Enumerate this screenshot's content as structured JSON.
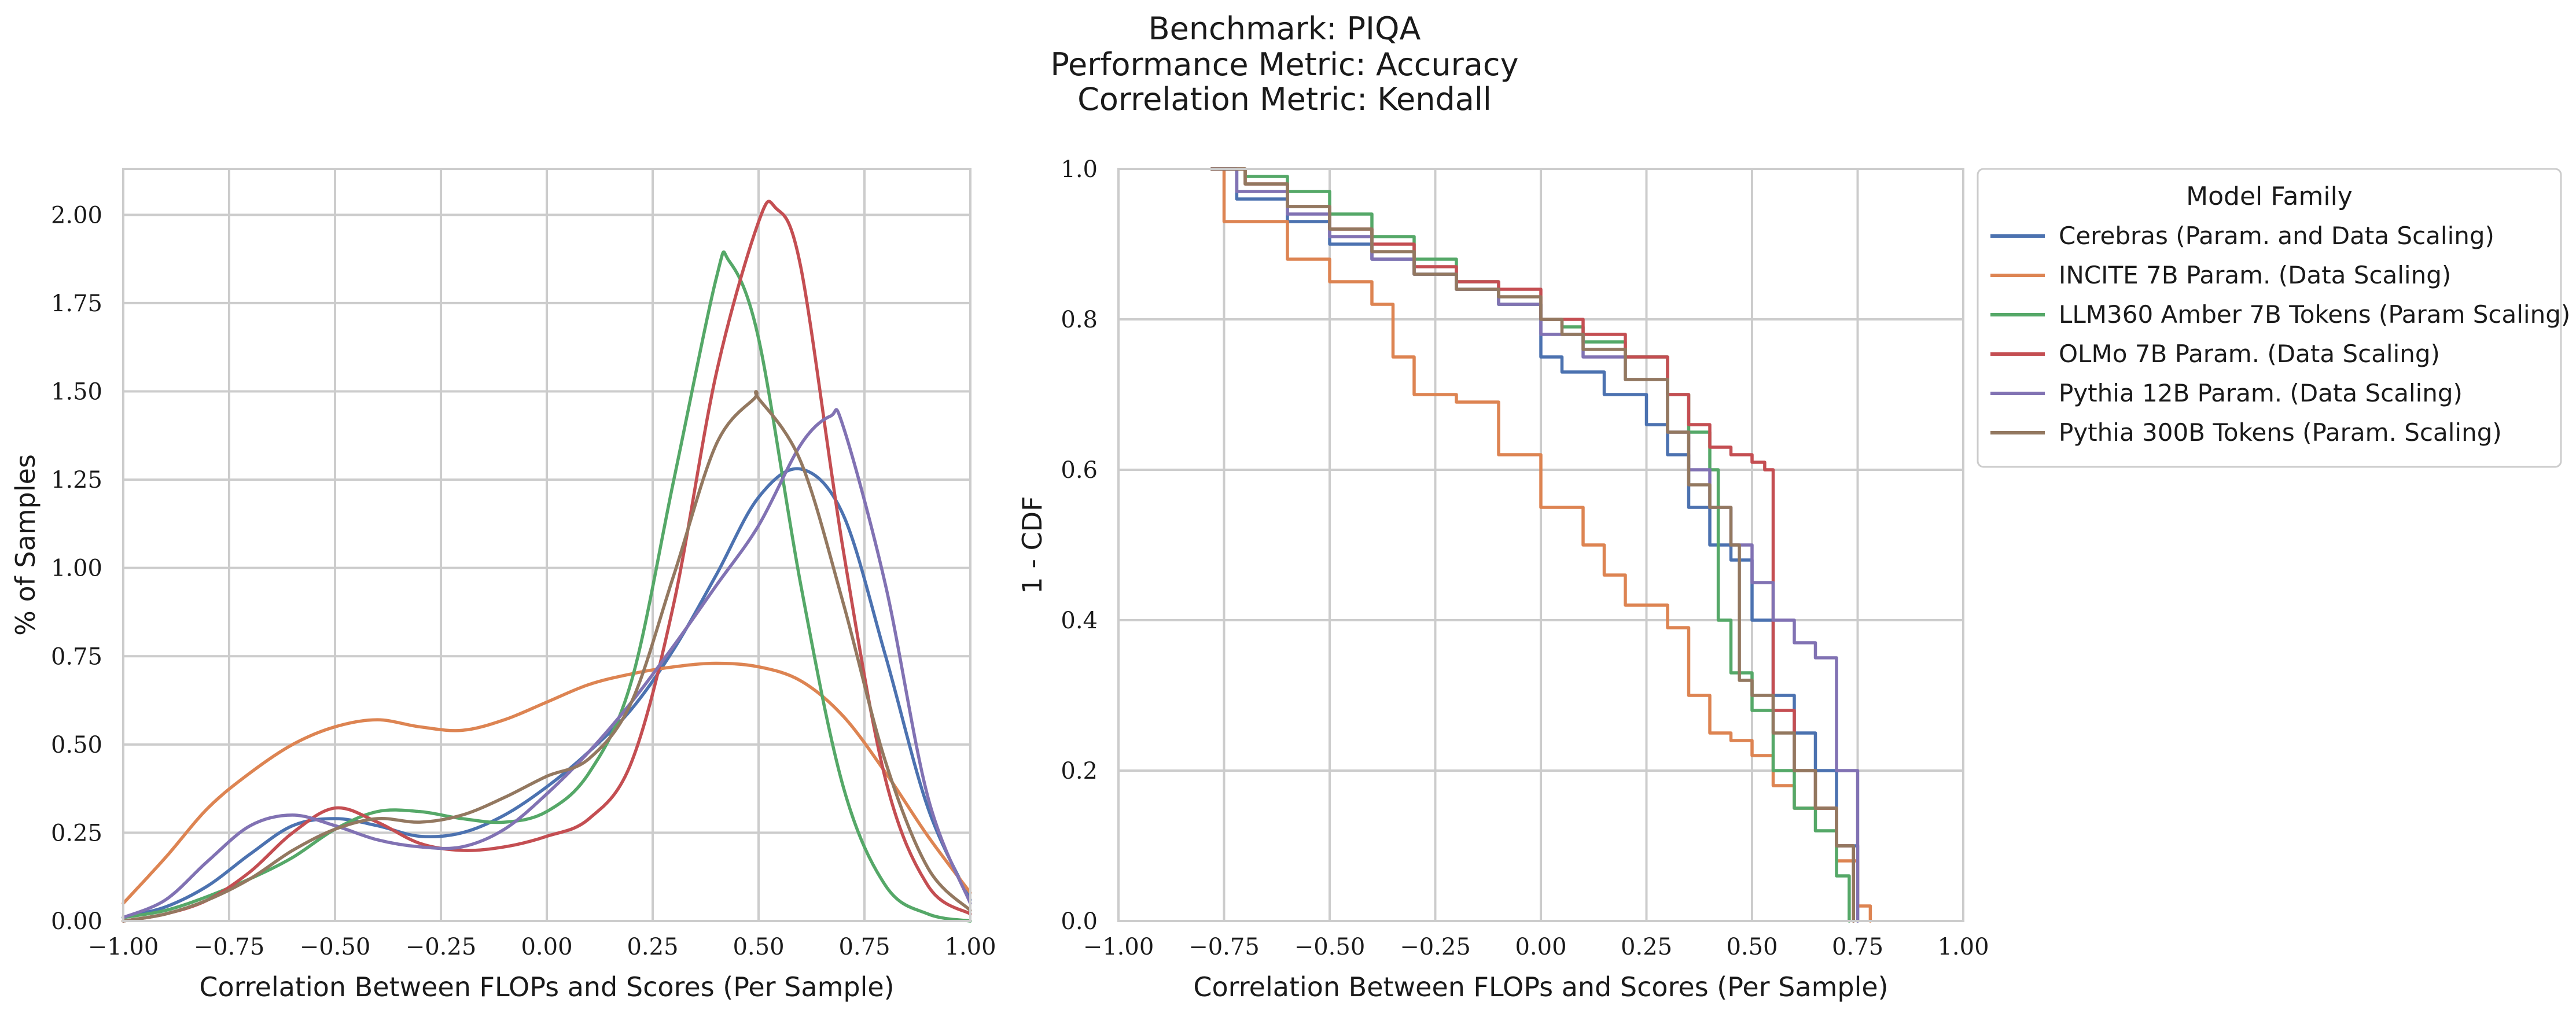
{
  "figure": {
    "title_lines": [
      "Benchmark: PIQA",
      "Performance Metric: Accuracy",
      "Correlation Metric: Kendall"
    ]
  },
  "colors": {
    "cerebras": "#4c72b0",
    "incite": "#dd8452",
    "llm360": "#55a868",
    "olmo": "#c44e52",
    "pythia12b": "#8172b3",
    "pythia300b": "#937860"
  },
  "chart_data": [
    {
      "type": "line",
      "subtype": "kde",
      "xlabel": "Correlation Between FLOPs and Scores (Per Sample)",
      "ylabel": "% of Samples",
      "xlim": [
        -1.0,
        1.0
      ],
      "ylim": [
        0.0,
        2.13
      ],
      "xticks": [
        "−1.00",
        "−0.75",
        "−0.50",
        "−0.25",
        "0.00",
        "0.25",
        "0.50",
        "0.75",
        "1.00"
      ],
      "yticks": [
        "0.00",
        "0.25",
        "0.50",
        "0.75",
        "1.00",
        "1.25",
        "1.50",
        "1.75",
        "2.00"
      ],
      "xtick_values": [
        -1.0,
        -0.75,
        -0.5,
        -0.25,
        0.0,
        0.25,
        0.5,
        0.75,
        1.0
      ],
      "ytick_values": [
        0.0,
        0.25,
        0.5,
        0.75,
        1.0,
        1.25,
        1.5,
        1.75,
        2.0
      ],
      "grid": true,
      "series": [
        {
          "name": "Cerebras (Param. and Data Scaling)",
          "color_key": "cerebras",
          "x": [
            -1.0,
            -0.9,
            -0.8,
            -0.7,
            -0.6,
            -0.5,
            -0.4,
            -0.3,
            -0.2,
            -0.1,
            0.0,
            0.1,
            0.2,
            0.3,
            0.4,
            0.5,
            0.6,
            0.7,
            0.8,
            0.9,
            1.0
          ],
          "y": [
            0.01,
            0.04,
            0.1,
            0.19,
            0.27,
            0.29,
            0.27,
            0.24,
            0.25,
            0.3,
            0.38,
            0.48,
            0.6,
            0.77,
            0.98,
            1.2,
            1.28,
            1.15,
            0.75,
            0.32,
            0.06
          ]
        },
        {
          "name": "INCITE 7B Param. (Data Scaling)",
          "color_key": "incite",
          "x": [
            -1.0,
            -0.9,
            -0.8,
            -0.7,
            -0.6,
            -0.5,
            -0.4,
            -0.3,
            -0.2,
            -0.1,
            0.0,
            0.1,
            0.2,
            0.3,
            0.4,
            0.5,
            0.6,
            0.7,
            0.8,
            0.9,
            1.0
          ],
          "y": [
            0.05,
            0.18,
            0.32,
            0.42,
            0.5,
            0.55,
            0.57,
            0.55,
            0.54,
            0.57,
            0.62,
            0.67,
            0.7,
            0.72,
            0.73,
            0.72,
            0.68,
            0.58,
            0.42,
            0.24,
            0.08
          ]
        },
        {
          "name": "LLM360 Amber 7B Tokens (Param Scaling)",
          "color_key": "llm360",
          "x": [
            -1.0,
            -0.9,
            -0.8,
            -0.7,
            -0.6,
            -0.5,
            -0.4,
            -0.3,
            -0.2,
            -0.1,
            0.0,
            0.1,
            0.2,
            0.3,
            0.4,
            0.43,
            0.5,
            0.6,
            0.7,
            0.8,
            0.9,
            1.0
          ],
          "y": [
            0.01,
            0.03,
            0.07,
            0.12,
            0.18,
            0.26,
            0.31,
            0.31,
            0.29,
            0.28,
            0.31,
            0.42,
            0.68,
            1.25,
            1.82,
            1.87,
            1.65,
            0.95,
            0.38,
            0.1,
            0.02,
            0.0
          ]
        },
        {
          "name": "OLMo 7B Param. (Data Scaling)",
          "color_key": "olmo",
          "x": [
            -1.0,
            -0.9,
            -0.8,
            -0.7,
            -0.6,
            -0.5,
            -0.4,
            -0.3,
            -0.2,
            -0.1,
            0.0,
            0.1,
            0.2,
            0.3,
            0.4,
            0.5,
            0.54,
            0.6,
            0.7,
            0.8,
            0.9,
            1.0
          ],
          "y": [
            0.0,
            0.02,
            0.06,
            0.14,
            0.25,
            0.32,
            0.28,
            0.22,
            0.2,
            0.21,
            0.24,
            0.29,
            0.45,
            0.9,
            1.55,
            1.98,
            2.02,
            1.85,
            1.05,
            0.4,
            0.1,
            0.02
          ]
        },
        {
          "name": "Pythia 12B Param. (Data Scaling)",
          "color_key": "pythia12b",
          "x": [
            -1.0,
            -0.9,
            -0.8,
            -0.7,
            -0.6,
            -0.5,
            -0.4,
            -0.3,
            -0.2,
            -0.1,
            0.0,
            0.1,
            0.2,
            0.3,
            0.4,
            0.5,
            0.6,
            0.67,
            0.7,
            0.8,
            0.9,
            1.0
          ],
          "y": [
            0.01,
            0.06,
            0.17,
            0.27,
            0.3,
            0.27,
            0.23,
            0.21,
            0.21,
            0.26,
            0.36,
            0.48,
            0.62,
            0.78,
            0.95,
            1.12,
            1.35,
            1.43,
            1.4,
            0.95,
            0.35,
            0.05
          ]
        },
        {
          "name": "Pythia 300B Tokens (Param. Scaling)",
          "color_key": "pythia300b",
          "x": [
            -1.0,
            -0.9,
            -0.8,
            -0.7,
            -0.6,
            -0.5,
            -0.4,
            -0.3,
            -0.2,
            -0.1,
            0.0,
            0.1,
            0.2,
            0.3,
            0.4,
            0.49,
            0.5,
            0.6,
            0.7,
            0.8,
            0.9,
            1.0
          ],
          "y": [
            0.0,
            0.02,
            0.06,
            0.12,
            0.2,
            0.26,
            0.29,
            0.28,
            0.3,
            0.35,
            0.41,
            0.46,
            0.62,
            0.98,
            1.35,
            1.48,
            1.48,
            1.3,
            0.9,
            0.45,
            0.15,
            0.03
          ]
        }
      ]
    },
    {
      "type": "line",
      "subtype": "step",
      "xlabel": "Correlation Between FLOPs and Scores (Per Sample)",
      "ylabel": "1 - CDF",
      "xlim": [
        -1.0,
        1.0
      ],
      "ylim": [
        0.0,
        1.0
      ],
      "xticks": [
        "−1.00",
        "−0.75",
        "−0.50",
        "−0.25",
        "0.00",
        "0.25",
        "0.50",
        "0.75",
        "1.00"
      ],
      "yticks": [
        "0.0",
        "0.2",
        "0.4",
        "0.6",
        "0.8",
        "1.0"
      ],
      "xtick_values": [
        -1.0,
        -0.75,
        -0.5,
        -0.25,
        0.0,
        0.25,
        0.5,
        0.75,
        1.0
      ],
      "ytick_values": [
        0.0,
        0.2,
        0.4,
        0.6,
        0.8,
        1.0
      ],
      "grid": true,
      "legend": {
        "title": "Model Family",
        "placement": "outside-right-top"
      },
      "series": [
        {
          "name": "Cerebras (Param. and Data Scaling)",
          "color_key": "cerebras",
          "x": [
            -0.78,
            -0.72,
            -0.6,
            -0.5,
            -0.4,
            -0.3,
            -0.2,
            -0.1,
            0.0,
            0.05,
            0.15,
            0.25,
            0.3,
            0.35,
            0.4,
            0.45,
            0.5,
            0.55,
            0.6,
            0.65,
            0.7,
            0.75
          ],
          "y": [
            1.0,
            0.96,
            0.93,
            0.9,
            0.88,
            0.86,
            0.84,
            0.82,
            0.75,
            0.73,
            0.7,
            0.66,
            0.62,
            0.55,
            0.5,
            0.48,
            0.4,
            0.3,
            0.25,
            0.2,
            0.1,
            0.0
          ]
        },
        {
          "name": "INCITE 7B Param. (Data Scaling)",
          "color_key": "incite",
          "x": [
            -0.78,
            -0.75,
            -0.6,
            -0.5,
            -0.4,
            -0.35,
            -0.3,
            -0.2,
            -0.1,
            0.0,
            0.1,
            0.15,
            0.2,
            0.3,
            0.35,
            0.4,
            0.45,
            0.5,
            0.55,
            0.6,
            0.7,
            0.75,
            0.78
          ],
          "y": [
            1.0,
            0.93,
            0.88,
            0.85,
            0.82,
            0.75,
            0.7,
            0.69,
            0.62,
            0.55,
            0.5,
            0.46,
            0.42,
            0.39,
            0.3,
            0.25,
            0.24,
            0.22,
            0.18,
            0.15,
            0.08,
            0.02,
            0.0
          ]
        },
        {
          "name": "LLM360 Amber 7B Tokens (Param Scaling)",
          "color_key": "llm360",
          "x": [
            -0.78,
            -0.7,
            -0.6,
            -0.5,
            -0.4,
            -0.3,
            -0.2,
            -0.1,
            0.0,
            0.05,
            0.1,
            0.2,
            0.3,
            0.35,
            0.4,
            0.42,
            0.45,
            0.5,
            0.55,
            0.6,
            0.65,
            0.7,
            0.73
          ],
          "y": [
            1.0,
            0.99,
            0.97,
            0.94,
            0.91,
            0.88,
            0.85,
            0.82,
            0.8,
            0.79,
            0.77,
            0.75,
            0.7,
            0.65,
            0.6,
            0.4,
            0.33,
            0.28,
            0.2,
            0.15,
            0.12,
            0.06,
            0.0
          ]
        },
        {
          "name": "OLMo 7B Param. (Data Scaling)",
          "color_key": "olmo",
          "x": [
            -0.78,
            -0.7,
            -0.6,
            -0.5,
            -0.4,
            -0.3,
            -0.2,
            -0.1,
            0.0,
            0.1,
            0.2,
            0.3,
            0.35,
            0.4,
            0.45,
            0.5,
            0.53,
            0.55,
            0.6,
            0.65,
            0.7,
            0.74
          ],
          "y": [
            1.0,
            0.98,
            0.95,
            0.92,
            0.9,
            0.87,
            0.85,
            0.84,
            0.8,
            0.78,
            0.75,
            0.7,
            0.66,
            0.63,
            0.62,
            0.61,
            0.6,
            0.28,
            0.2,
            0.15,
            0.1,
            0.0
          ]
        },
        {
          "name": "Pythia 12B Param. (Data Scaling)",
          "color_key": "pythia12b",
          "x": [
            -0.78,
            -0.72,
            -0.6,
            -0.5,
            -0.4,
            -0.3,
            -0.2,
            -0.1,
            0.0,
            0.1,
            0.2,
            0.3,
            0.35,
            0.4,
            0.45,
            0.5,
            0.55,
            0.6,
            0.65,
            0.7,
            0.75
          ],
          "y": [
            1.0,
            0.97,
            0.94,
            0.91,
            0.88,
            0.86,
            0.84,
            0.82,
            0.78,
            0.75,
            0.72,
            0.65,
            0.6,
            0.55,
            0.5,
            0.45,
            0.4,
            0.37,
            0.35,
            0.2,
            0.0
          ]
        },
        {
          "name": "Pythia 300B Tokens (Param. Scaling)",
          "color_key": "pythia300b",
          "x": [
            -0.78,
            -0.7,
            -0.6,
            -0.5,
            -0.4,
            -0.3,
            -0.2,
            -0.1,
            0.0,
            0.05,
            0.1,
            0.2,
            0.3,
            0.35,
            0.4,
            0.45,
            0.47,
            0.5,
            0.55,
            0.6,
            0.65,
            0.7,
            0.74
          ],
          "y": [
            1.0,
            0.98,
            0.95,
            0.92,
            0.89,
            0.86,
            0.84,
            0.83,
            0.8,
            0.78,
            0.76,
            0.72,
            0.65,
            0.58,
            0.55,
            0.5,
            0.32,
            0.3,
            0.25,
            0.2,
            0.15,
            0.1,
            0.0
          ]
        }
      ]
    }
  ]
}
